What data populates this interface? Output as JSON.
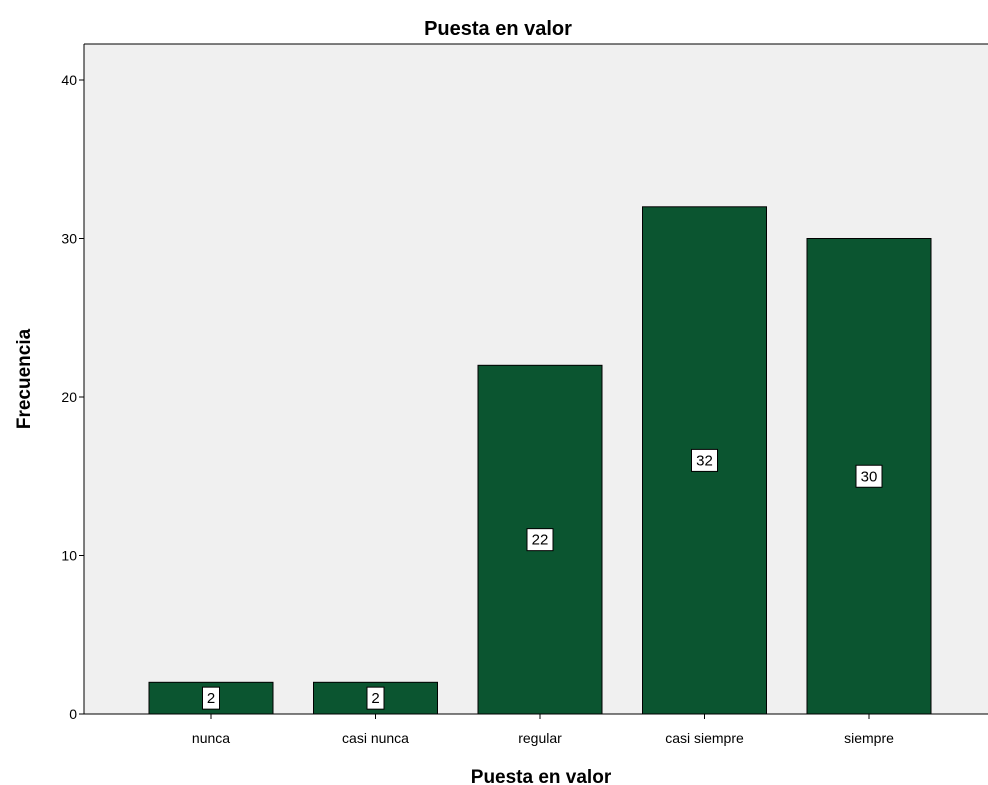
{
  "chart_data": {
    "type": "bar",
    "title": "Puesta en valor",
    "xlabel": "Puesta en valor",
    "ylabel": "Frecuencia",
    "categories": [
      "nunca",
      "casi nunca",
      "regular",
      "casi siempre",
      "siempre"
    ],
    "values": [
      2,
      2,
      22,
      32,
      30
    ],
    "data_labels": [
      "2",
      "2",
      "22",
      "32",
      "30"
    ],
    "ylim": [
      0,
      42
    ],
    "yticks": [
      0,
      10,
      20,
      30,
      40
    ],
    "grid": false,
    "legend": "none",
    "colors": {
      "bar_fill": "#0b5530",
      "bar_stroke": "#000000",
      "plot_background": "#f0f0f0",
      "label_box": "#ffffff"
    }
  }
}
